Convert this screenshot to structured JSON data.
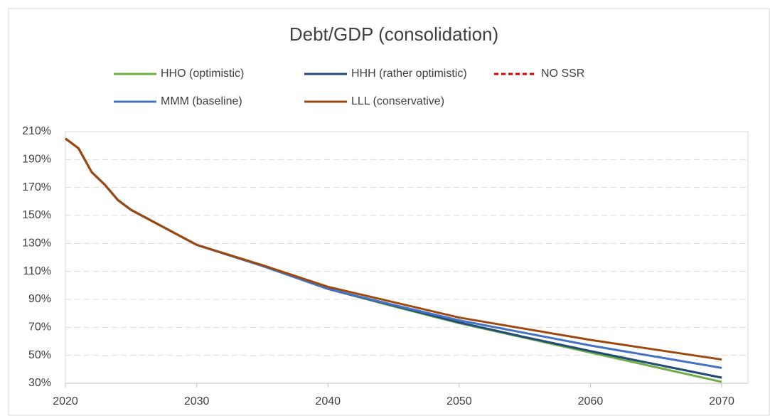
{
  "chart_data": {
    "type": "line",
    "title": "Debt/GDP (consolidation)",
    "x": [
      2020,
      2021,
      2022,
      2023,
      2024,
      2025,
      2030,
      2035,
      2040,
      2045,
      2050,
      2055,
      2060,
      2065,
      2070
    ],
    "series": [
      {
        "name": "NO SSR",
        "color": "#e00000",
        "dashed": true,
        "values": [
          205,
          198,
          181,
          172,
          161,
          154,
          129,
          114,
          97.5,
          85.5,
          73.5,
          63,
          53,
          43.5,
          34
        ]
      },
      {
        "name": "HHO (optimistic)",
        "color": "#70ad47",
        "values": [
          205,
          198,
          181,
          172,
          161,
          154,
          129,
          114,
          97.5,
          85,
          73,
          62.5,
          52,
          41.5,
          31
        ]
      },
      {
        "name": "HHH (rather optimistic)",
        "color": "#1f4e79",
        "values": [
          205,
          198,
          181,
          172,
          161,
          154,
          129,
          114,
          97.5,
          85.5,
          73.5,
          63,
          53,
          43.5,
          34
        ]
      },
      {
        "name": "MMM (baseline)",
        "color": "#4472c4",
        "values": [
          205,
          198,
          181,
          172,
          161,
          154,
          129,
          114,
          97.5,
          86,
          75,
          66,
          57,
          49,
          41
        ]
      },
      {
        "name": "LLL (conservative)",
        "color": "#9e480e",
        "values": [
          205,
          198,
          181,
          172,
          161,
          154,
          129,
          114.5,
          99,
          88,
          77,
          69,
          61,
          54,
          47
        ]
      }
    ],
    "xlim": [
      2020,
      2072
    ],
    "xticks": [
      2020,
      2030,
      2040,
      2050,
      2060,
      2070
    ],
    "ylim": [
      30,
      210
    ],
    "yticks": [
      {
        "value": 30,
        "label": "30%"
      },
      {
        "value": 50,
        "label": "50%"
      },
      {
        "value": 70,
        "label": "70%"
      },
      {
        "value": 90,
        "label": "90%"
      },
      {
        "value": 110,
        "label": "110%"
      },
      {
        "value": 130,
        "label": "130%"
      },
      {
        "value": 150,
        "label": "150%"
      },
      {
        "value": 170,
        "label": "170%"
      },
      {
        "value": 190,
        "label": "190%"
      },
      {
        "value": 210,
        "label": "210%"
      }
    ],
    "grid": true
  }
}
